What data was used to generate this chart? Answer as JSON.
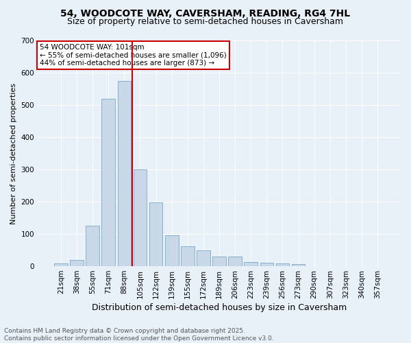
{
  "title": "54, WOODCOTE WAY, CAVERSHAM, READING, RG4 7HL",
  "subtitle": "Size of property relative to semi-detached houses in Caversham",
  "xlabel": "Distribution of semi-detached houses by size in Caversham",
  "ylabel": "Number of semi-detached properties",
  "categories": [
    "21sqm",
    "38sqm",
    "55sqm",
    "71sqm",
    "88sqm",
    "105sqm",
    "122sqm",
    "139sqm",
    "155sqm",
    "172sqm",
    "189sqm",
    "206sqm",
    "223sqm",
    "239sqm",
    "256sqm",
    "273sqm",
    "290sqm",
    "307sqm",
    "323sqm",
    "340sqm",
    "357sqm"
  ],
  "values": [
    8,
    20,
    125,
    520,
    575,
    300,
    197,
    95,
    62,
    50,
    30,
    30,
    12,
    10,
    8,
    7,
    0,
    0,
    0,
    0,
    0
  ],
  "bar_color": "#c8d8e8",
  "bar_edge_color": "#7aa8c8",
  "vline_index": 5,
  "vline_color": "#cc0000",
  "annotation_text": "54 WOODCOTE WAY: 101sqm\n← 55% of semi-detached houses are smaller (1,096)\n44% of semi-detached houses are larger (873) →",
  "annotation_box_color": "#ffffff",
  "annotation_box_edge": "#cc0000",
  "ylim": [
    0,
    700
  ],
  "yticks": [
    0,
    100,
    200,
    300,
    400,
    500,
    600,
    700
  ],
  "footer_line1": "Contains HM Land Registry data © Crown copyright and database right 2025.",
  "footer_line2": "Contains public sector information licensed under the Open Government Licence v3.0.",
  "bg_color": "#e8f0f8",
  "plot_bg_color": "#e8f0f8",
  "title_fontsize": 10,
  "subtitle_fontsize": 9,
  "tick_fontsize": 7.5,
  "ylabel_fontsize": 8,
  "xlabel_fontsize": 9,
  "footer_fontsize": 6.5
}
